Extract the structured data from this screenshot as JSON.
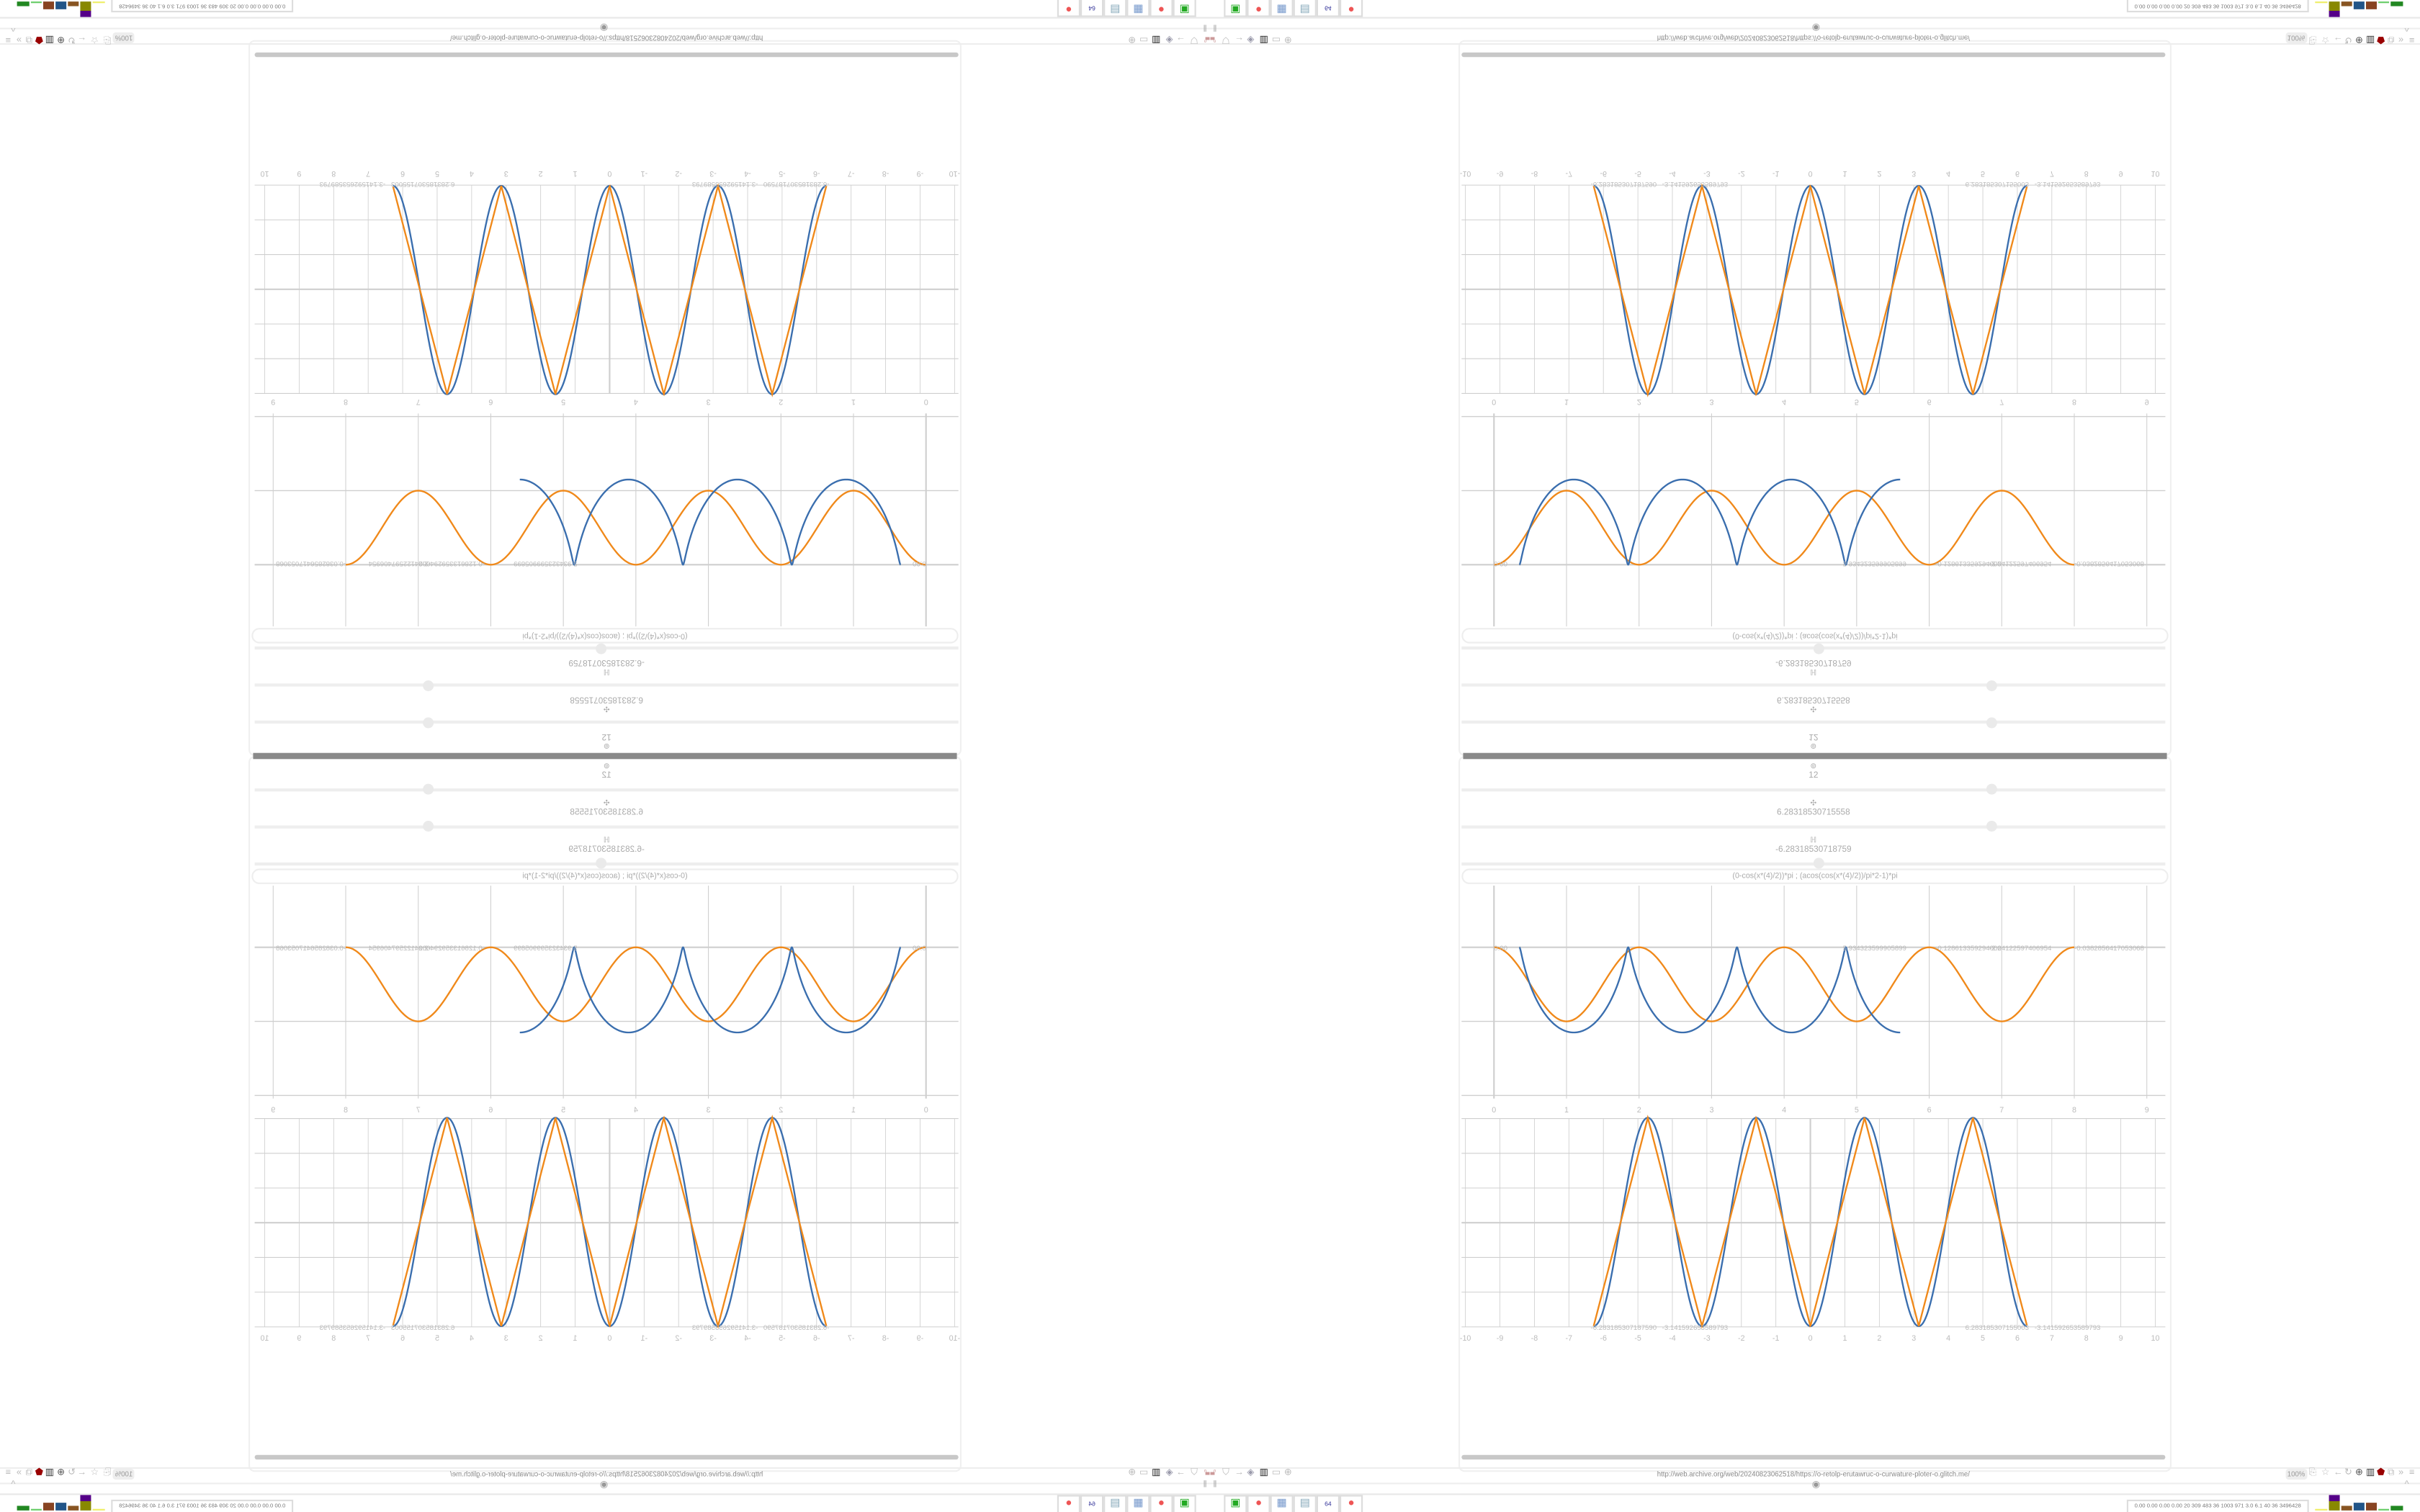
{
  "browser": {
    "url": "http://web.archive.org/web/20240823062518/https://o-retolp-erutawruc-o-curwature-ploter-o.glitch.me/",
    "zoom_level": "100%"
  },
  "controls": [
    {
      "icon": "⊚",
      "value": "12",
      "slider_fraction": 0.75
    },
    {
      "icon": "✣",
      "value": "6.28318530715558",
      "slider_fraction": 0.75
    },
    {
      "icon": "ℍ",
      "value": "-6.28318530718759",
      "slider_fraction": 0.25
    }
  ],
  "formula": "(0-cos(x*(4)/2))*pi ; (acos(cos(x*(4)/2))/pi*2-1)*pi",
  "taskbar": {
    "stats": "0.00 0.00 0.00 0.00  20  309  483  36  1003  971  3.0  6.1  40  36  3496428",
    "apps": [
      "terminal-icon",
      "firefox-icon",
      "calculator-icon",
      "notepad-icon",
      "floppy-icon",
      "firefox-icon"
    ],
    "floppy_label": "64"
  },
  "colors": {
    "blue": "#3a6eae",
    "orange": "#f0891a",
    "grid": "#cfcfcf"
  },
  "chart_data": [
    {
      "type": "line",
      "xlim": [
        -0.5,
        9.3
      ],
      "ylim": [
        -1.2,
        0
      ],
      "x_ticks": [
        "0",
        "1",
        "2",
        "3",
        "4",
        "5",
        "6",
        "7",
        "8",
        "9"
      ],
      "point_labels": [
        "0.00",
        "5.934323599905899",
        "-0.128613359294002",
        "-2.04122597406954",
        "-0.0382856417053068"
      ],
      "grid": true
    },
    {
      "type": "line",
      "xlim": [
        -10,
        10
      ],
      "ylim": [
        -3.3,
        3.3
      ],
      "x_ticks": [
        "-10",
        "-9",
        "-8",
        "-7",
        "-6",
        "-5",
        "-4",
        "-3",
        "-2",
        "-1",
        "0",
        "1",
        "2",
        "3",
        "4",
        "5",
        "6",
        "7",
        "8",
        "9",
        "10"
      ],
      "point_labels": [
        "-6.283185307187590",
        "-3.141592653589793",
        "6.283185307155003",
        "-3.141592653589793"
      ],
      "domain": [
        -6.28318530718759,
        6.28318530715558
      ],
      "grid": true
    }
  ]
}
